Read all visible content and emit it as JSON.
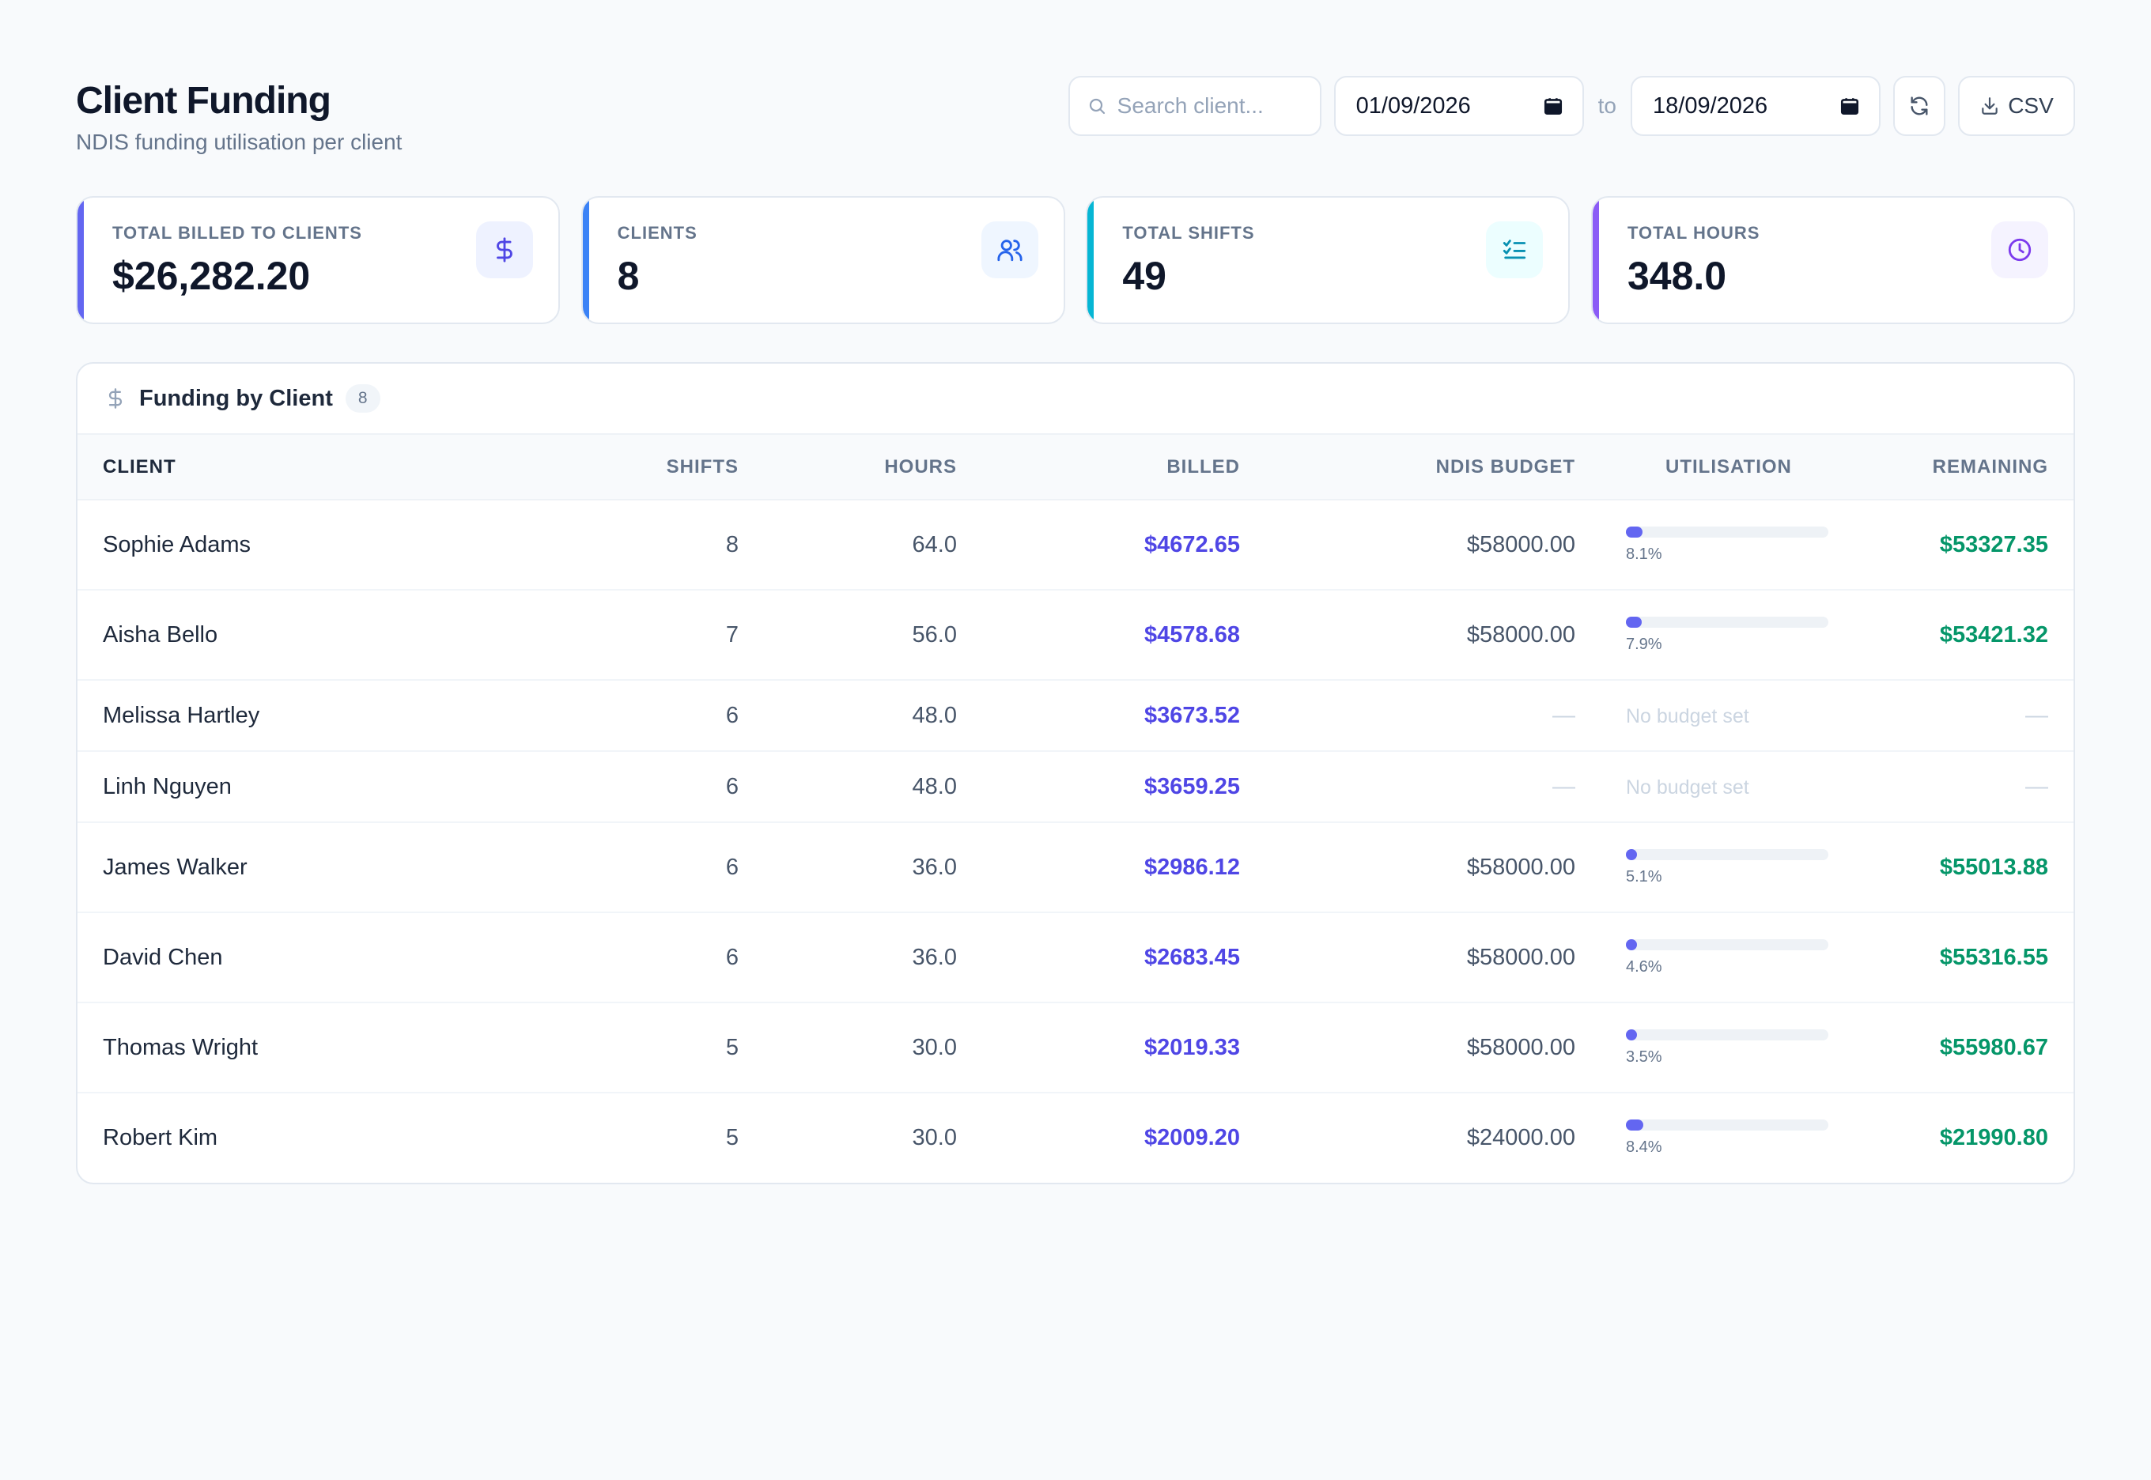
{
  "header": {
    "title": "Client Funding",
    "subtitle": "NDIS funding utilisation per client",
    "search_placeholder": "Search client...",
    "date_from": "01/09/2026",
    "date_sep": "to",
    "date_to": "18/09/2026",
    "csv_label": "CSV"
  },
  "stats": [
    {
      "label": "TOTAL BILLED TO CLIENTS",
      "value": "$26,282.20",
      "icon": "dollar-icon",
      "accent": "#6366f1",
      "icon_color": "#4f46e5",
      "icon_bg": "#eef2ff"
    },
    {
      "label": "CLIENTS",
      "value": "8",
      "icon": "users-icon",
      "accent": "#3b82f6",
      "icon_color": "#2563eb",
      "icon_bg": "#eff6ff"
    },
    {
      "label": "TOTAL SHIFTS",
      "value": "49",
      "icon": "list-checks-icon",
      "accent": "#06b6d4",
      "icon_color": "#0891b2",
      "icon_bg": "#ecfeff"
    },
    {
      "label": "TOTAL HOURS",
      "value": "348.0",
      "icon": "clock-icon",
      "accent": "#8b5cf6",
      "icon_color": "#7c3aed",
      "icon_bg": "#f5f3ff"
    }
  ],
  "table": {
    "title": "Funding by Client",
    "count": "8",
    "columns": [
      "CLIENT",
      "SHIFTS",
      "HOURS",
      "BILLED",
      "NDIS BUDGET",
      "UTILISATION",
      "REMAINING"
    ],
    "rows": [
      {
        "client": "Sophie Adams",
        "shifts": "8",
        "hours": "64.0",
        "billed": "$4672.65",
        "budget": "$58000.00",
        "util_pct": 8.1,
        "util": "8.1%",
        "remaining": "$53327.35"
      },
      {
        "client": "Aisha Bello",
        "shifts": "7",
        "hours": "56.0",
        "billed": "$4578.68",
        "budget": "$58000.00",
        "util_pct": 7.9,
        "util": "7.9%",
        "remaining": "$53421.32"
      },
      {
        "client": "Melissa Hartley",
        "shifts": "6",
        "hours": "48.0",
        "billed": "$3673.52",
        "budget": "—",
        "util_pct": null,
        "util": "No budget set",
        "remaining": "—"
      },
      {
        "client": "Linh Nguyen",
        "shifts": "6",
        "hours": "48.0",
        "billed": "$3659.25",
        "budget": "—",
        "util_pct": null,
        "util": "No budget set",
        "remaining": "—"
      },
      {
        "client": "James Walker",
        "shifts": "6",
        "hours": "36.0",
        "billed": "$2986.12",
        "budget": "$58000.00",
        "util_pct": 5.1,
        "util": "5.1%",
        "remaining": "$55013.88"
      },
      {
        "client": "David Chen",
        "shifts": "6",
        "hours": "36.0",
        "billed": "$2683.45",
        "budget": "$58000.00",
        "util_pct": 4.6,
        "util": "4.6%",
        "remaining": "$55316.55"
      },
      {
        "client": "Thomas Wright",
        "shifts": "5",
        "hours": "30.0",
        "billed": "$2019.33",
        "budget": "$58000.00",
        "util_pct": 3.5,
        "util": "3.5%",
        "remaining": "$55980.67"
      },
      {
        "client": "Robert Kim",
        "shifts": "5",
        "hours": "30.0",
        "billed": "$2009.20",
        "budget": "$24000.00",
        "util_pct": 8.4,
        "util": "8.4%",
        "remaining": "$21990.80"
      }
    ]
  }
}
